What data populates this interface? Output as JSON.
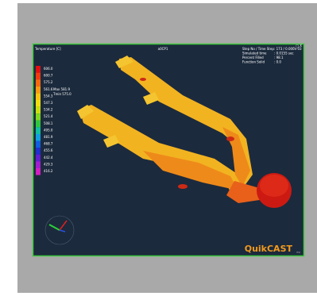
{
  "viewport": {
    "title": "Temperature [C]",
    "mode": "a0CP1",
    "legend": [
      "606.0",
      "600.7",
      "575.2",
      "561.6",
      "554.3",
      "547.3",
      "534.2",
      "521.4",
      "508.1",
      "495.0",
      "481.9",
      "468.7",
      "455.6",
      "442.4",
      "429.3",
      "416.2"
    ],
    "markers": [
      "Max 581.9",
      "Tmin 575.0"
    ]
  },
  "info": [
    {
      "label": "Step No / Time Step",
      "value": ": 173 / 0.000e-03"
    },
    {
      "label": "Simulated time",
      "value": ": 0.0155 sec"
    },
    {
      "label": "Percent Filled",
      "value": ": 98.1"
    },
    {
      "label": "Function Solid",
      "value": ": 0.0"
    }
  ],
  "window_controls": "_ □ X",
  "brand": "QuikCAST",
  "brand_sub": "ESI"
}
